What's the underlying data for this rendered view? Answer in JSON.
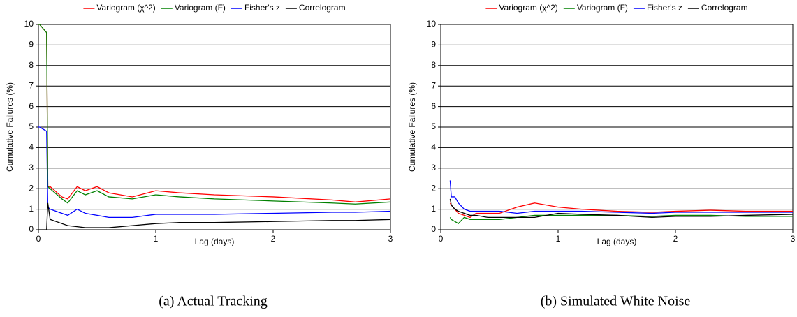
{
  "chart_data": [
    {
      "type": "line",
      "caption": "(a) Actual Tracking",
      "xlabel": "Lag (days)",
      "ylabel": "Cumulative Failures (%)",
      "x": [
        0,
        0.01,
        0.04,
        0.07,
        0.08,
        0.1,
        0.2,
        0.25,
        0.33,
        0.4,
        0.5,
        0.6,
        0.8,
        1.0,
        1.2,
        1.5,
        2.0,
        2.5,
        2.7,
        3.0
      ],
      "series": [
        {
          "name": "Variogram (χ^2)",
          "color": "#ff0000",
          "values": [
            10,
            10,
            9.8,
            9.6,
            2.1,
            2.1,
            1.6,
            1.5,
            2.1,
            1.9,
            2.1,
            1.8,
            1.6,
            1.9,
            1.8,
            1.7,
            1.6,
            1.45,
            1.35,
            1.5
          ]
        },
        {
          "name": "Variogram (F)",
          "color": "#008000",
          "values": [
            10,
            10,
            9.8,
            9.6,
            2.1,
            2.0,
            1.5,
            1.3,
            1.9,
            1.7,
            1.9,
            1.6,
            1.5,
            1.7,
            1.6,
            1.5,
            1.4,
            1.3,
            1.25,
            1.35
          ]
        },
        {
          "name": "Fisher's z",
          "color": "#0000ff",
          "values": [
            5,
            5,
            4.9,
            4.8,
            1.1,
            1.0,
            0.8,
            0.7,
            1.0,
            0.8,
            0.7,
            0.6,
            0.6,
            0.75,
            0.75,
            0.75,
            0.8,
            0.85,
            0.85,
            0.9
          ]
        },
        {
          "name": "Correlogram",
          "color": "#000000",
          "values": [
            0,
            0,
            0,
            0,
            1.3,
            0.5,
            0.3,
            0.2,
            0.15,
            0.1,
            0.1,
            0.1,
            0.2,
            0.3,
            0.35,
            0.35,
            0.4,
            0.45,
            0.45,
            0.5
          ]
        }
      ],
      "xlim": [
        0,
        3
      ],
      "xticks": [
        0,
        1,
        2,
        3
      ],
      "ylim": [
        0,
        10
      ],
      "yticks": [
        0,
        1,
        2,
        3,
        4,
        5,
        6,
        7,
        8,
        9,
        10
      ],
      "grid": true,
      "legend": "top"
    },
    {
      "type": "line",
      "caption": "(b) Simulated White Noise",
      "xlabel": "Lag (days)",
      "ylabel": "Cumulative Failures (%)",
      "x": [
        0.08,
        0.09,
        0.12,
        0.15,
        0.2,
        0.25,
        0.3,
        0.4,
        0.5,
        0.65,
        0.8,
        1.0,
        1.2,
        1.5,
        1.8,
        2.0,
        2.3,
        2.6,
        3.0
      ],
      "series": [
        {
          "name": "Variogram (χ^2)",
          "color": "#ff0000",
          "values": [
            1.3,
            1.2,
            1.0,
            0.8,
            0.7,
            0.6,
            0.8,
            0.8,
            0.8,
            1.1,
            1.3,
            1.1,
            1.0,
            0.9,
            0.85,
            0.9,
            0.95,
            0.9,
            0.9
          ]
        },
        {
          "name": "Variogram (F)",
          "color": "#008000",
          "values": [
            0.6,
            0.5,
            0.4,
            0.3,
            0.6,
            0.5,
            0.5,
            0.5,
            0.5,
            0.6,
            0.7,
            0.7,
            0.7,
            0.7,
            0.65,
            0.7,
            0.7,
            0.65,
            0.65
          ]
        },
        {
          "name": "Fisher's z",
          "color": "#0000ff",
          "values": [
            2.4,
            1.6,
            1.6,
            1.3,
            1.0,
            0.9,
            0.9,
            0.9,
            0.9,
            0.8,
            0.9,
            0.9,
            0.9,
            0.85,
            0.8,
            0.85,
            0.85,
            0.85,
            0.85
          ]
        },
        {
          "name": "Correlogram",
          "color": "#000000",
          "values": [
            1.5,
            1.2,
            1.0,
            0.9,
            0.8,
            0.7,
            0.7,
            0.6,
            0.6,
            0.6,
            0.6,
            0.8,
            0.75,
            0.7,
            0.6,
            0.65,
            0.65,
            0.7,
            0.75
          ]
        }
      ],
      "xlim": [
        0,
        3
      ],
      "xticks": [
        0,
        1,
        2,
        3
      ],
      "ylim": [
        0,
        10
      ],
      "yticks": [
        0,
        1,
        2,
        3,
        4,
        5,
        6,
        7,
        8,
        9,
        10
      ],
      "grid": true,
      "legend": "top"
    }
  ]
}
